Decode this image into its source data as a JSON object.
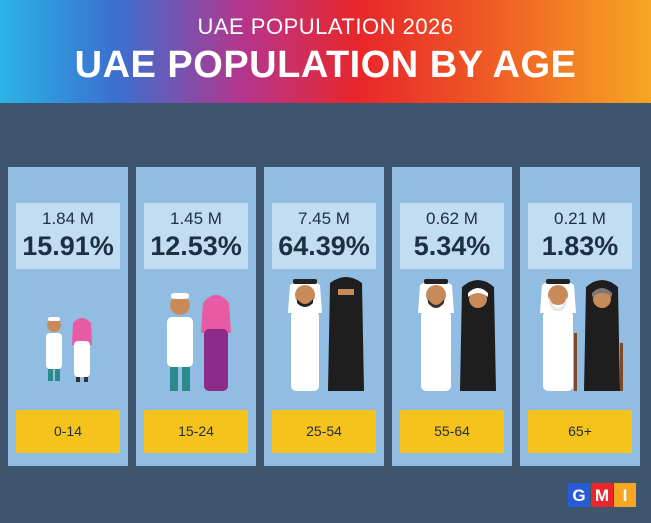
{
  "header": {
    "subtitle": "UAE POPULATION 2026",
    "title": "UAE POPULATION BY AGE"
  },
  "chart_data": {
    "type": "table",
    "categories": [
      "0-14",
      "15-24",
      "25-54",
      "55-64",
      "65+"
    ],
    "series": [
      {
        "values_label": [
          "1.84 M",
          "1.45 M",
          "7.45 M",
          "0.62 M",
          "0.21 M"
        ],
        "values": [
          1.84,
          1.45,
          7.45,
          0.62,
          0.21
        ]
      },
      {
        "values_label": [
          "15.91%",
          "12.53%",
          "64.39%",
          "5.34%",
          "1.83%"
        ],
        "values": [
          15.91,
          12.53,
          64.39,
          5.34,
          1.83
        ]
      }
    ]
  },
  "groups": [
    {
      "population": "1.84 M",
      "percent": "15.91%",
      "age": "0-14",
      "figures": "child-boy-girl"
    },
    {
      "population": "1.45 M",
      "percent": "12.53%",
      "age": "15-24",
      "figures": "teen-boy-girl"
    },
    {
      "population": "7.45 M",
      "percent": "64.39%",
      "age": "25-54",
      "figures": "adult-man-woman"
    },
    {
      "population": "0.62 M",
      "percent": "5.34%",
      "age": "55-64",
      "figures": "middle-aged-man-woman"
    },
    {
      "population": "0.21 M",
      "percent": "1.83%",
      "age": "65+",
      "figures": "elderly-man-woman"
    }
  ],
  "logo": {
    "text": "GMI",
    "colors": [
      "#2a5bd7",
      "#e8262b",
      "#f6a623"
    ]
  },
  "colors": {
    "background": "#3d566e",
    "column": "#92bde3",
    "stat_box": "#c2dcf2",
    "label_box": "#f6c31c"
  }
}
